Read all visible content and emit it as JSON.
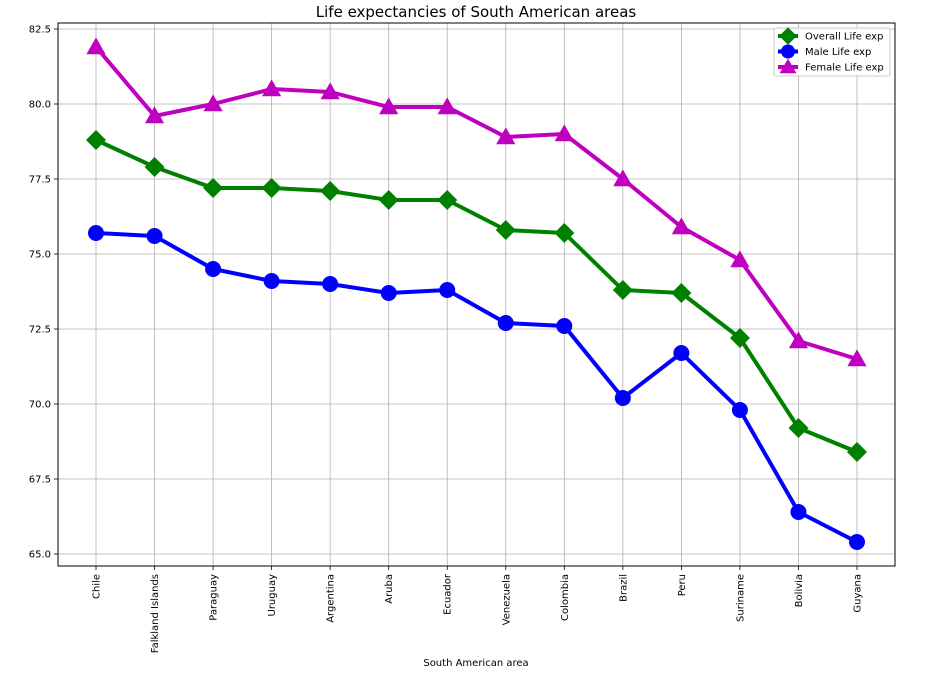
{
  "chart_data": {
    "type": "line",
    "title": "Life expectancies of South American areas",
    "xlabel": "South American area",
    "ylabel": "",
    "categories": [
      "Chile",
      "Falkland Islands",
      "Paraguay",
      "Uruguay",
      "Argentina",
      "Aruba",
      "Ecuador",
      "Venezuela",
      "Colombia",
      "Brazil",
      "Peru",
      "Suriname",
      "Bolivia",
      "Guyana"
    ],
    "ylim": [
      64.6,
      82.7
    ],
    "yticks": [
      65.0,
      67.5,
      70.0,
      72.5,
      75.0,
      77.5,
      80.0,
      82.5
    ],
    "ytick_labels": [
      "65.0",
      "67.5",
      "70.0",
      "72.5",
      "75.0",
      "77.5",
      "80.0",
      "82.5"
    ],
    "grid": true,
    "legend_position": "top-right",
    "series": [
      {
        "name": "Overall Life exp",
        "color": "#008000",
        "marker": "diamond",
        "values": [
          78.8,
          77.9,
          77.2,
          77.2,
          77.1,
          76.8,
          76.8,
          75.8,
          75.7,
          73.8,
          73.7,
          72.2,
          69.2,
          68.4
        ]
      },
      {
        "name": "Male Life exp",
        "color": "#0000ff",
        "marker": "circle",
        "values": [
          75.7,
          75.6,
          74.5,
          74.1,
          74.0,
          73.7,
          73.8,
          72.7,
          72.6,
          70.2,
          71.7,
          69.8,
          66.4,
          65.4
        ]
      },
      {
        "name": "Female Life exp",
        "color": "#bf00bf",
        "marker": "triangle",
        "values": [
          81.9,
          79.6,
          80.0,
          80.5,
          80.4,
          79.9,
          79.9,
          78.9,
          79.0,
          77.5,
          75.9,
          74.8,
          72.1,
          71.5
        ]
      }
    ]
  }
}
